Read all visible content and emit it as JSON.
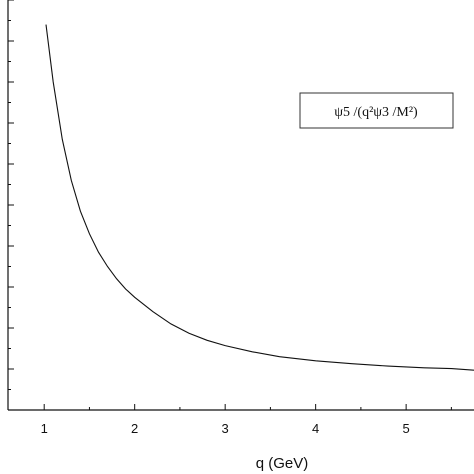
{
  "chart_data": {
    "type": "line",
    "title": "",
    "xlabel": "q (GeV)",
    "ylabel": "",
    "xlim": [
      0.6,
      5.75
    ],
    "ylim": [
      0,
      10
    ],
    "x_ticks": [
      1,
      2,
      3,
      4,
      5
    ],
    "x_tick_labels": [
      "1",
      "2",
      "3",
      "4",
      "5"
    ],
    "y_tick_labels_visible": false,
    "legend": "top-right",
    "series": [
      {
        "name": "ψ5 /(q²ψ3 /M²)",
        "x": [
          1.02,
          1.1,
          1.2,
          1.3,
          1.4,
          1.5,
          1.6,
          1.7,
          1.8,
          1.9,
          2.0,
          2.2,
          2.4,
          2.6,
          2.8,
          3.0,
          3.3,
          3.6,
          4.0,
          4.4,
          4.8,
          5.2,
          5.5,
          5.75
        ],
        "y": [
          9.4,
          8.0,
          6.6,
          5.6,
          4.85,
          4.3,
          3.85,
          3.5,
          3.2,
          2.95,
          2.75,
          2.4,
          2.1,
          1.87,
          1.7,
          1.57,
          1.42,
          1.3,
          1.2,
          1.13,
          1.07,
          1.03,
          1.01,
          0.97
        ]
      }
    ]
  }
}
